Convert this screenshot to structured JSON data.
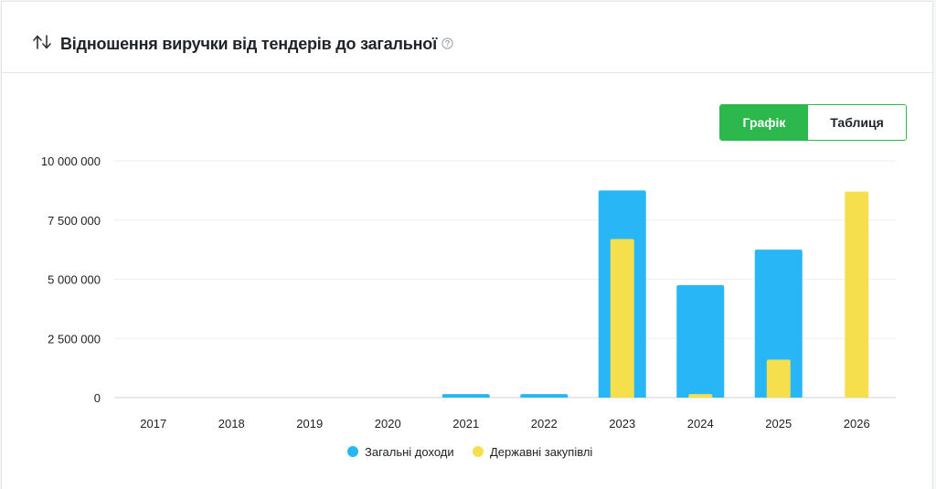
{
  "header": {
    "title": "Відношення виручки від тендерів до загальної",
    "sort_icon": "sort-arrows-icon",
    "help_icon": "question-circle-icon"
  },
  "view_toggle": {
    "chart_label": "Графік",
    "table_label": "Таблиця",
    "active": "chart",
    "accent_color": "#2db84d"
  },
  "chart_data": {
    "type": "bar",
    "categories": [
      "2017",
      "2018",
      "2019",
      "2020",
      "2021",
      "2022",
      "2023",
      "2024",
      "2025",
      "2026"
    ],
    "series": [
      {
        "name": "Загальні доходи",
        "color": "#29b6f6",
        "values": [
          0,
          0,
          0,
          0,
          150000,
          150000,
          8750000,
          4750000,
          6250000,
          0
        ]
      },
      {
        "name": "Державні закупівлі",
        "color": "#f5df4d",
        "values": [
          0,
          0,
          0,
          0,
          0,
          0,
          6700000,
          150000,
          1600000,
          8700000
        ]
      }
    ],
    "ylim": [
      0,
      10000000
    ],
    "yticks": [
      0,
      2500000,
      5000000,
      7500000,
      10000000
    ],
    "ytick_labels": [
      "0",
      "2 500 000",
      "5 000 000",
      "7 500 000",
      "10 000 000"
    ],
    "grid": true,
    "legend": "bottom-center"
  }
}
